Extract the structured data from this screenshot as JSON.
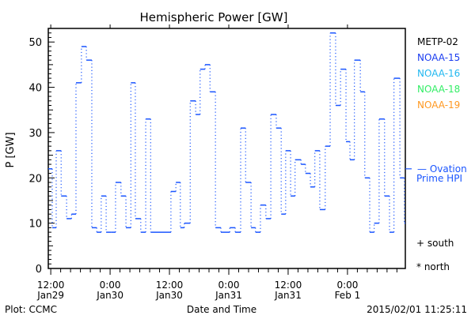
{
  "chart_data": {
    "type": "line",
    "title": "Hemispheric Power [GW]",
    "xlabel": "Date and Time",
    "ylabel": "P [GW]",
    "x_units": "hours since 2015-01-29 00:00",
    "xlim": [
      11.5,
      83.7
    ],
    "ylim": [
      0,
      53
    ],
    "yticks": [
      0,
      10,
      20,
      30,
      40,
      50
    ],
    "xticks": [
      {
        "x": 12,
        "line1": "12:00",
        "line2": "Jan29"
      },
      {
        "x": 24,
        "line1": "0:00",
        "line2": "Jan30"
      },
      {
        "x": 36,
        "line1": "12:00",
        "line2": "Jan30"
      },
      {
        "x": 48,
        "line1": "0:00",
        "line2": "Jan31"
      },
      {
        "x": 60,
        "line1": "12:00",
        "line2": "Jan31"
      },
      {
        "x": 72,
        "line1": "0:00",
        "line2": "Feb 1"
      }
    ],
    "legend": [
      {
        "label": "METP-02",
        "color": "#000000"
      },
      {
        "label": "NOAA-15",
        "color": "#1a3cf0"
      },
      {
        "label": "NOAA-16",
        "color": "#22b8f0"
      },
      {
        "label": "NOAA-18",
        "color": "#33ee66"
      },
      {
        "label": "NOAA-19",
        "color": "#ff9922"
      }
    ],
    "ovation": {
      "label1": "— Ovation",
      "label2": "Prime HPI",
      "value": 22,
      "color": "#1a55ff"
    },
    "markers": [
      {
        "label": "+ south"
      },
      {
        "label": "* north"
      }
    ],
    "series": [
      {
        "name": "NOAA-15 step",
        "color": "#1a55ff",
        "steps": [
          [
            11.5,
            22
          ],
          [
            12.3,
            9
          ],
          [
            13.1,
            26
          ],
          [
            14.1,
            16
          ],
          [
            15.2,
            11
          ],
          [
            16.2,
            12
          ],
          [
            17.1,
            41
          ],
          [
            18.2,
            49
          ],
          [
            19.2,
            46
          ],
          [
            20.3,
            9
          ],
          [
            21.3,
            8
          ],
          [
            22.2,
            16
          ],
          [
            23.2,
            8
          ],
          [
            24.2,
            8
          ],
          [
            25.1,
            19
          ],
          [
            26.2,
            16
          ],
          [
            27.2,
            9
          ],
          [
            28.2,
            41
          ],
          [
            29.1,
            11
          ],
          [
            30.2,
            8
          ],
          [
            31.2,
            33
          ],
          [
            32.2,
            8
          ],
          [
            36.3,
            17
          ],
          [
            37.3,
            19
          ],
          [
            38.2,
            9
          ],
          [
            39.0,
            10
          ],
          [
            40.2,
            37
          ],
          [
            41.3,
            34
          ],
          [
            42.2,
            44
          ],
          [
            43.2,
            45
          ],
          [
            44.2,
            39
          ],
          [
            45.3,
            9
          ],
          [
            46.4,
            8
          ],
          [
            48.2,
            9
          ],
          [
            49.3,
            8
          ],
          [
            50.4,
            31
          ],
          [
            51.4,
            19
          ],
          [
            52.5,
            9
          ],
          [
            53.4,
            8
          ],
          [
            54.4,
            14
          ],
          [
            55.5,
            11
          ],
          [
            56.5,
            34
          ],
          [
            57.6,
            31
          ],
          [
            58.6,
            12
          ],
          [
            59.5,
            26
          ],
          [
            60.5,
            16
          ],
          [
            61.4,
            24
          ],
          [
            62.6,
            23
          ],
          [
            63.5,
            21
          ],
          [
            64.5,
            18
          ],
          [
            65.4,
            26
          ],
          [
            66.4,
            13
          ],
          [
            67.5,
            27
          ],
          [
            68.5,
            52
          ],
          [
            69.6,
            36
          ],
          [
            70.6,
            44
          ],
          [
            71.7,
            28
          ],
          [
            72.5,
            24
          ],
          [
            73.4,
            46
          ],
          [
            74.6,
            39
          ],
          [
            75.5,
            20
          ],
          [
            76.5,
            8
          ],
          [
            77.4,
            10
          ],
          [
            78.4,
            33
          ],
          [
            79.5,
            16
          ],
          [
            80.5,
            8
          ],
          [
            81.4,
            42
          ],
          [
            82.6,
            20
          ],
          [
            83.5,
            10
          ]
        ]
      }
    ]
  },
  "footer": {
    "left": "Plot: CCMC",
    "right": "2015/02/01 11:25:11"
  }
}
